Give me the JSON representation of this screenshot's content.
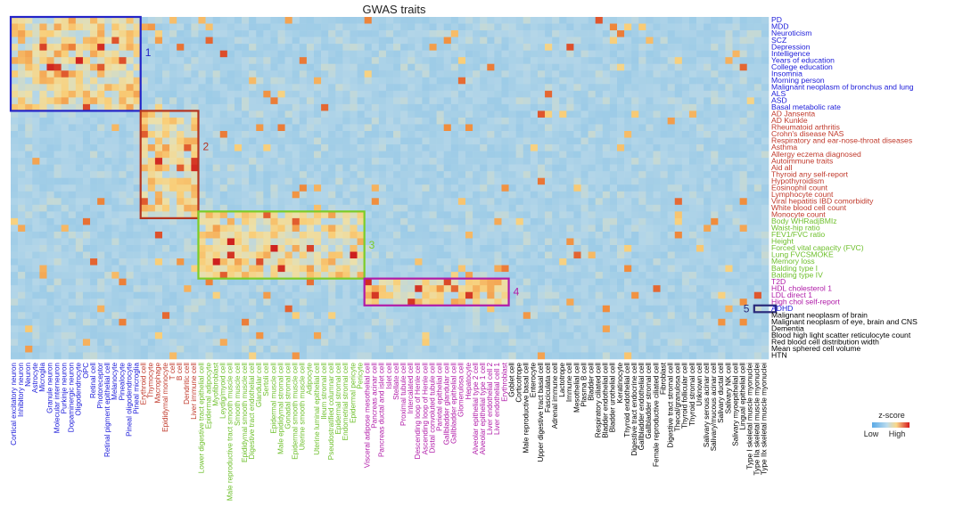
{
  "chart_data": {
    "type": "heatmap",
    "title": "GWAS traits",
    "rows": [
      {
        "label": "PD",
        "group": 1
      },
      {
        "label": "MDD",
        "group": 1
      },
      {
        "label": "Neuroticism",
        "group": 1
      },
      {
        "label": "SCZ",
        "group": 1
      },
      {
        "label": "Depression",
        "group": 1
      },
      {
        "label": "Intelligence",
        "group": 1
      },
      {
        "label": "Years of education",
        "group": 1
      },
      {
        "label": "College education",
        "group": 1
      },
      {
        "label": "Insomnia",
        "group": 1
      },
      {
        "label": "Morning person",
        "group": 1
      },
      {
        "label": "Malignant neoplasm of bronchus and lung",
        "group": 1
      },
      {
        "label": "ALS",
        "group": 1
      },
      {
        "label": "ASD",
        "group": 1
      },
      {
        "label": "Basal metabolic rate",
        "group": 1
      },
      {
        "label": "AD Jansenta",
        "group": 2
      },
      {
        "label": "AD Kunkle",
        "group": 2
      },
      {
        "label": "Rheumatoid arthritis",
        "group": 2
      },
      {
        "label": "Crohn's disease NAS",
        "group": 2
      },
      {
        "label": "Respiratory and ear-nose-throat diseases",
        "group": 2
      },
      {
        "label": "Asthma",
        "group": 2
      },
      {
        "label": "Allergy eczema diagnosed",
        "group": 2
      },
      {
        "label": "Autoimmune traits",
        "group": 2
      },
      {
        "label": "Aid all",
        "group": 2
      },
      {
        "label": "Thyroid any self-report",
        "group": 2
      },
      {
        "label": "Hypothyroidism",
        "group": 2
      },
      {
        "label": "Eosinophil count",
        "group": 2
      },
      {
        "label": "Lymphocyte count",
        "group": 2
      },
      {
        "label": "Viral hepatitis IBD comorbidity",
        "group": 2
      },
      {
        "label": "White blood cell count",
        "group": 2
      },
      {
        "label": "Monocyte count",
        "group": 2
      },
      {
        "label": "Body WHRadjBMIz",
        "group": 3
      },
      {
        "label": "Waist-hip ratio",
        "group": 3
      },
      {
        "label": "FEV1/FVC ratio",
        "group": 3
      },
      {
        "label": "Height",
        "group": 3
      },
      {
        "label": "Forced vital capacity (FVC)",
        "group": 3
      },
      {
        "label": "Lung FVCSMOKE",
        "group": 3
      },
      {
        "label": "Memory loss",
        "group": 3
      },
      {
        "label": "Balding type I",
        "group": 3
      },
      {
        "label": "Balding type IV",
        "group": 3
      },
      {
        "label": "T2D",
        "group": 4
      },
      {
        "label": "HDL cholesterol 1",
        "group": 4
      },
      {
        "label": "LDL direct 1",
        "group": 4
      },
      {
        "label": "High chol self-report",
        "group": 4
      },
      {
        "label": "ADHD",
        "group": 5
      },
      {
        "label": "Malignant neoplasm of brain",
        "group": 0
      },
      {
        "label": "Malignant neoplasm of eye, brain and CNS",
        "group": 0
      },
      {
        "label": "Dementia",
        "group": 0
      },
      {
        "label": "Blood high light scatter reticulocyte count",
        "group": 0
      },
      {
        "label": "Red blood cell distribution width",
        "group": 0
      },
      {
        "label": "Mean sphered cell volume",
        "group": 0
      },
      {
        "label": "HTN",
        "group": 0
      }
    ],
    "columns": [
      {
        "label": "Cortical excitatory neuron",
        "group": 1
      },
      {
        "label": "Inhibitory neuron",
        "group": 1
      },
      {
        "label": "Neuron",
        "group": 1
      },
      {
        "label": "Astrocyte",
        "group": 1
      },
      {
        "label": "Microglia",
        "group": 1
      },
      {
        "label": "Granule neuron",
        "group": 1
      },
      {
        "label": "Molecular interneuron",
        "group": 1
      },
      {
        "label": "Purkinje neuron",
        "group": 1
      },
      {
        "label": "Dopaminergic neuron",
        "group": 1
      },
      {
        "label": "Oligodendrocyte",
        "group": 1
      },
      {
        "label": "OPC",
        "group": 1
      },
      {
        "label": "Retinal cell",
        "group": 1
      },
      {
        "label": "Photoreceptor",
        "group": 1
      },
      {
        "label": "Retinal pigment epithelial cell",
        "group": 1
      },
      {
        "label": "Melanocyte",
        "group": 1
      },
      {
        "label": "Pinealocyte",
        "group": 1
      },
      {
        "label": "Pineal oligodendrocyte",
        "group": 1
      },
      {
        "label": "Pineal microglia",
        "group": 1
      },
      {
        "label": "Erythroid cell",
        "group": 2
      },
      {
        "label": "Thymocyte",
        "group": 2
      },
      {
        "label": "Macrophage",
        "group": 2
      },
      {
        "label": "Epididymal monocyte",
        "group": 2
      },
      {
        "label": "T cell",
        "group": 2
      },
      {
        "label": "B cell",
        "group": 2
      },
      {
        "label": "Dendritic cell",
        "group": 2
      },
      {
        "label": "Liver immune cell",
        "group": 2
      },
      {
        "label": "Lower digestive tract epithelial cell",
        "group": 3
      },
      {
        "label": "Epidermal adipocyte",
        "group": 3
      },
      {
        "label": "Myofibroblast",
        "group": 3
      },
      {
        "label": "Leydig/myoid cell",
        "group": 3
      },
      {
        "label": "Male reproductive tract smooth muscle cell",
        "group": 3
      },
      {
        "label": "Smooth muscle cell",
        "group": 3
      },
      {
        "label": "Epididymal smooth muscle cell",
        "group": 3
      },
      {
        "label": "Digestive tract endothelial cell",
        "group": 3
      },
      {
        "label": "Glandular cell",
        "group": 3
      },
      {
        "label": "Sertoli cell",
        "group": 3
      },
      {
        "label": "Epidermal muscle cell",
        "group": 3
      },
      {
        "label": "Male epididymal stromal cell",
        "group": 3
      },
      {
        "label": "Gonadal stromal cell",
        "group": 3
      },
      {
        "label": "Epidermal smooth muscle cell",
        "group": 3
      },
      {
        "label": "Uterine smooth muscle cell",
        "group": 3
      },
      {
        "label": "Adipocyte",
        "group": 3
      },
      {
        "label": "Uterine luminal epithelial cell",
        "group": 3
      },
      {
        "label": "Ileum stromal cell",
        "group": 3
      },
      {
        "label": "Pseudostratified columnar cell",
        "group": 3
      },
      {
        "label": "Epidermal stromal cell",
        "group": 3
      },
      {
        "label": "Endometrial stromal cell",
        "group": 3
      },
      {
        "label": "Epidermal pericyte",
        "group": 3
      },
      {
        "label": "Pericyte",
        "group": 3
      },
      {
        "label": "Visceral adipose mesothelial cell",
        "group": 4
      },
      {
        "label": "Pancreas acinar cell",
        "group": 4
      },
      {
        "label": "Pancreas ductal and islet cell",
        "group": 4
      },
      {
        "label": "Islet cell",
        "group": 4
      },
      {
        "label": "Stellate cell",
        "group": 4
      },
      {
        "label": "Proximal tubule cell",
        "group": 4
      },
      {
        "label": "Intercalated cell",
        "group": 4
      },
      {
        "label": "Descending loop of Henle cell",
        "group": 4
      },
      {
        "label": "Ascending loop of Henle cell",
        "group": 4
      },
      {
        "label": "Distal convoluted tubule cell",
        "group": 4
      },
      {
        "label": "Parietal epithelial cell",
        "group": 4
      },
      {
        "label": "Gallbladder glandular cell",
        "group": 4
      },
      {
        "label": "Gallbladder epithelial cell",
        "group": 4
      },
      {
        "label": "Glomerulosa cell",
        "group": 4
      },
      {
        "label": "Hepatocyte",
        "group": 4
      },
      {
        "label": "Alveolar epithelial type 2 cell",
        "group": 4
      },
      {
        "label": "Alveolar epithelial type 1 cell",
        "group": 4
      },
      {
        "label": "Liver endothelial cell 2",
        "group": 4
      },
      {
        "label": "Liver endothelial cell 1",
        "group": 4
      },
      {
        "label": "Erythroblast",
        "group": 4
      },
      {
        "label": "Goblet cell",
        "group": 0
      },
      {
        "label": "Corticotrope",
        "group": 0
      },
      {
        "label": "Male reproductive basal cell",
        "group": 0
      },
      {
        "label": "Enterocyte",
        "group": 0
      },
      {
        "label": "Upper digestive tract basal cell",
        "group": 0
      },
      {
        "label": "Fasciculata cell",
        "group": 0
      },
      {
        "label": "Adrenal immune cell",
        "group": 0
      },
      {
        "label": "Lactotrope",
        "group": 0
      },
      {
        "label": "Immune cell",
        "group": 0
      },
      {
        "label": "Mesothelial cell",
        "group": 0
      },
      {
        "label": "Plasma B cell",
        "group": 0
      },
      {
        "label": "Bladder cell",
        "group": 0
      },
      {
        "label": "Respiratory ciliated cell",
        "group": 0
      },
      {
        "label": "Bladder endothelial cell",
        "group": 0
      },
      {
        "label": "Bladder urothelial cell",
        "group": 0
      },
      {
        "label": "Keratinocyte",
        "group": 0
      },
      {
        "label": "Thyroid endothelial cell",
        "group": 0
      },
      {
        "label": "Digestive tract endocrine cell",
        "group": 0
      },
      {
        "label": "Gallbladder endothelial cell",
        "group": 0
      },
      {
        "label": "Gallbladder stromal cell",
        "group": 0
      },
      {
        "label": "Female reproductive ciliated cell",
        "group": 0
      },
      {
        "label": "Fibroblast",
        "group": 0
      },
      {
        "label": "Digestive tract stromal cell",
        "group": 0
      },
      {
        "label": "Thecal/granulosa cell",
        "group": 0
      },
      {
        "label": "Thyroid follicular cell",
        "group": 0
      },
      {
        "label": "Thyroid stromal cell",
        "group": 0
      },
      {
        "label": "Unknown cell",
        "group": 0
      },
      {
        "label": "Salivary serous acinar cell",
        "group": 0
      },
      {
        "label": "Salivary/mucous acinar cell",
        "group": 0
      },
      {
        "label": "Salivary ductal cell",
        "group": 0
      },
      {
        "label": "Salivary NK cell",
        "group": 0
      },
      {
        "label": "Salivary myoepithelial cell",
        "group": 0
      },
      {
        "label": "Lingual epithelial cell",
        "group": 0
      },
      {
        "label": "Type I skeletal muscle myonuclei",
        "group": 0
      },
      {
        "label": "Type IIa skeletal muscle myonuclei",
        "group": 0
      },
      {
        "label": "Type IIx skeletal muscle myonuclei",
        "group": 0
      }
    ],
    "group_colors": {
      "0": "#000000",
      "1": "#1a1ad9",
      "2": "#c0392b",
      "3": "#6dbf2a",
      "4": "#b01ba8",
      "5": "#1a1ad9"
    },
    "boxes": [
      {
        "label": "1",
        "color": "#2323c8",
        "rows": [
          0,
          13
        ],
        "cols": [
          0,
          17
        ]
      },
      {
        "label": "2",
        "color": "#b5341f",
        "rows": [
          14,
          29
        ],
        "cols": [
          18,
          25
        ]
      },
      {
        "label": "3",
        "color": "#7ccc27",
        "rows": [
          29,
          38
        ],
        "cols": [
          26,
          48
        ]
      },
      {
        "label": "4",
        "color": "#b01ba8",
        "rows": [
          39,
          42
        ],
        "cols": [
          49,
          68
        ]
      },
      {
        "label": "5",
        "color": "#2a2a7a",
        "rows": [
          43,
          43
        ],
        "cols": [
          103,
          105
        ]
      }
    ],
    "colorscale": {
      "low": "#8ecae6",
      "mid": "#f9d98a",
      "high": "#d7191c"
    },
    "legend": {
      "title": "z-score",
      "low": "Low",
      "high": "High"
    }
  }
}
